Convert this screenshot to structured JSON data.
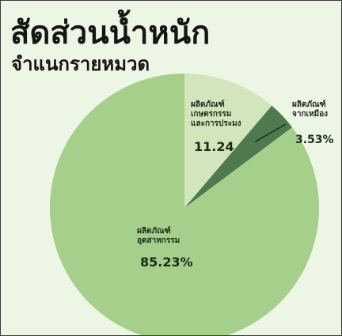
{
  "title": "สัดส่วนน้ำหนัก",
  "subtitle": "จำแนกรายหมวด",
  "chart_data": {
    "type": "pie",
    "slices": [
      {
        "label_lines": [
          "ผลิตภัณฑ์",
          "เกษตรกรรม",
          "และการประมง"
        ],
        "value_text": "11.24",
        "value": 11.24,
        "color": "#d3e5bd"
      },
      {
        "label_lines": [
          "ผลิตภัณฑ์",
          "จากเหมือง"
        ],
        "value_text": "3.53%",
        "value": 3.53,
        "color": "#4f7a4f"
      },
      {
        "label_lines": [
          "ผลิตภัณฑ์",
          "อุตสาหกรรม"
        ],
        "value_text": "85.23%",
        "value": 85.23,
        "color": "#a5cf8b"
      }
    ]
  }
}
